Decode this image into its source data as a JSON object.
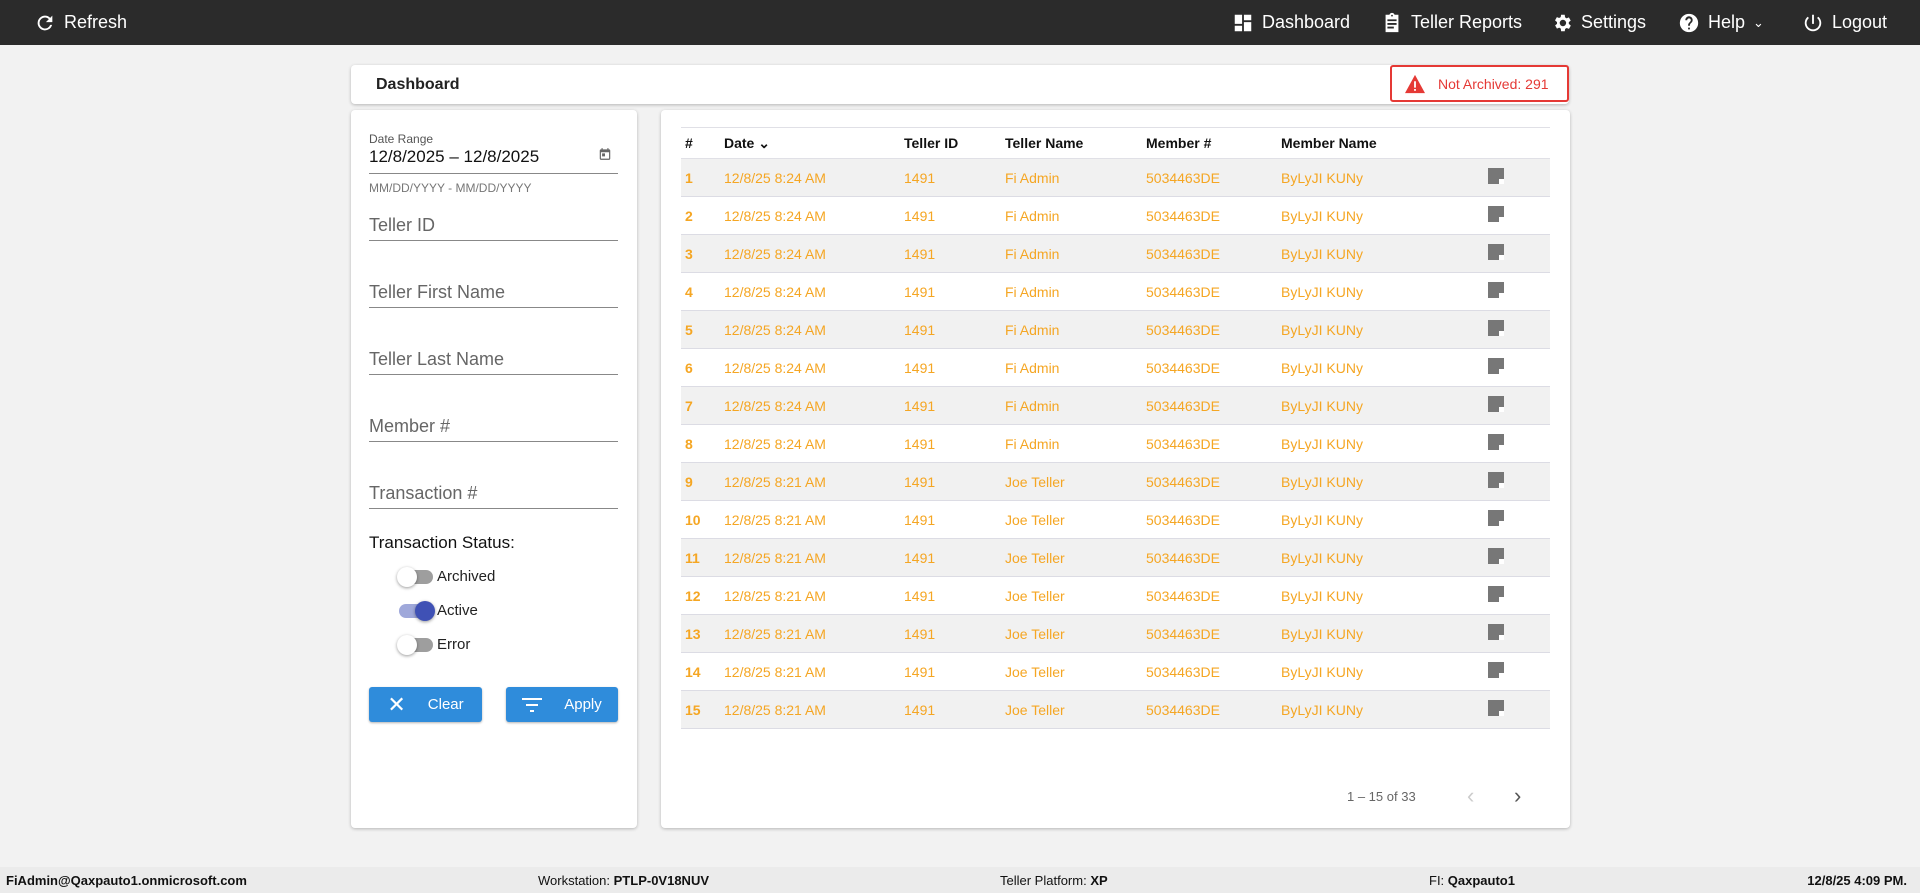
{
  "topbar": {
    "refresh": "Refresh",
    "dashboard": "Dashboard",
    "teller_reports": "Teller Reports",
    "settings": "Settings",
    "help": "Help",
    "logout": "Logout"
  },
  "header": {
    "title": "Dashboard",
    "alert": "Not Archived: 291",
    "alert_color": "#e53935"
  },
  "filters": {
    "date_range_label": "Date Range",
    "date_range_value": "12/8/2025 – 12/8/2025",
    "date_hint": "MM/DD/YYYY - MM/DD/YYYY",
    "teller_id": "Teller ID",
    "teller_first": "Teller First Name",
    "teller_last": "Teller Last Name",
    "member": "Member #",
    "transaction": "Transaction #",
    "status_label": "Transaction Status:",
    "toggles": [
      {
        "label": "Archived",
        "on": false
      },
      {
        "label": "Active",
        "on": true
      },
      {
        "label": "Error",
        "on": false
      }
    ],
    "clear": "Clear",
    "apply": "Apply"
  },
  "table": {
    "columns": [
      "#",
      "Date",
      "Teller ID",
      "Teller Name",
      "Member #",
      "Member Name"
    ],
    "rows": [
      [
        "1",
        "12/8/25 8:24 AM",
        "1491",
        "Fi Admin",
        "5034463DE",
        "ByLyJI KUNy"
      ],
      [
        "2",
        "12/8/25 8:24 AM",
        "1491",
        "Fi Admin",
        "5034463DE",
        "ByLyJI KUNy"
      ],
      [
        "3",
        "12/8/25 8:24 AM",
        "1491",
        "Fi Admin",
        "5034463DE",
        "ByLyJI KUNy"
      ],
      [
        "4",
        "12/8/25 8:24 AM",
        "1491",
        "Fi Admin",
        "5034463DE",
        "ByLyJI KUNy"
      ],
      [
        "5",
        "12/8/25 8:24 AM",
        "1491",
        "Fi Admin",
        "5034463DE",
        "ByLyJI KUNy"
      ],
      [
        "6",
        "12/8/25 8:24 AM",
        "1491",
        "Fi Admin",
        "5034463DE",
        "ByLyJI KUNy"
      ],
      [
        "7",
        "12/8/25 8:24 AM",
        "1491",
        "Fi Admin",
        "5034463DE",
        "ByLyJI KUNy"
      ],
      [
        "8",
        "12/8/25 8:24 AM",
        "1491",
        "Fi Admin",
        "5034463DE",
        "ByLyJI KUNy"
      ],
      [
        "9",
        "12/8/25 8:21 AM",
        "1491",
        "Joe Teller",
        "5034463DE",
        "ByLyJI KUNy"
      ],
      [
        "10",
        "12/8/25 8:21 AM",
        "1491",
        "Joe Teller",
        "5034463DE",
        "ByLyJI KUNy"
      ],
      [
        "11",
        "12/8/25 8:21 AM",
        "1491",
        "Joe Teller",
        "5034463DE",
        "ByLyJI KUNy"
      ],
      [
        "12",
        "12/8/25 8:21 AM",
        "1491",
        "Joe Teller",
        "5034463DE",
        "ByLyJI KUNy"
      ],
      [
        "13",
        "12/8/25 8:21 AM",
        "1491",
        "Joe Teller",
        "5034463DE",
        "ByLyJI KUNy"
      ],
      [
        "14",
        "12/8/25 8:21 AM",
        "1491",
        "Joe Teller",
        "5034463DE",
        "ByLyJI KUNy"
      ],
      [
        "15",
        "12/8/25 8:21 AM",
        "1491",
        "Joe Teller",
        "5034463DE",
        "ByLyJI KUNy"
      ]
    ],
    "row_color": "#f5a623"
  },
  "pager": {
    "range": "1 – 15 of 33"
  },
  "footer": {
    "user": "FiAdmin@Qaxpauto1.onmicrosoft.com",
    "workstation_label": "Workstation:",
    "workstation": "PTLP-0V18NUV",
    "platform_label": "Teller Platform:",
    "platform": "XP",
    "fi_label": "FI:",
    "fi": "Qaxpauto1",
    "datetime": "12/8/25 4:09 PM."
  }
}
